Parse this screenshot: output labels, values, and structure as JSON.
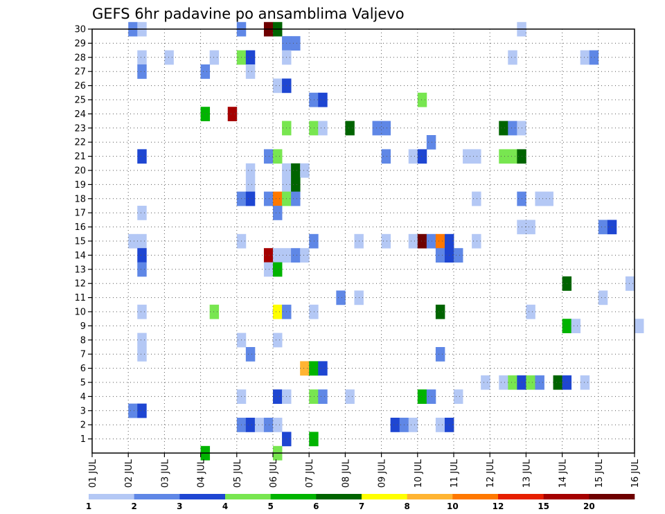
{
  "chart_data": {
    "type": "heatmap",
    "title": "GEFS 6hr padavine po ansamblima Valjevo",
    "xlabel": "",
    "ylabel": "",
    "x_tick_labels": [
      "01 JUL",
      "02 JUL",
      "03 JUL",
      "04 JUL",
      "05 JUL",
      "06 JUL",
      "07 JUL",
      "08 JUL",
      "09 JUL",
      "10 JUL",
      "11 JUL",
      "12 JUL",
      "13 JUL",
      "14 JUL",
      "15 JUL",
      "16 JUL"
    ],
    "y_tick_labels": [
      "1",
      "2",
      "3",
      "4",
      "5",
      "6",
      "7",
      "8",
      "9",
      "10",
      "11",
      "12",
      "13",
      "14",
      "15",
      "16",
      "17",
      "18",
      "19",
      "20",
      "21",
      "22",
      "23",
      "24",
      "25",
      "26",
      "27",
      "28",
      "29",
      "30"
    ],
    "xlim": [
      "01 JUL 00z",
      "16 JUL 00z"
    ],
    "ylim": [
      0,
      30
    ],
    "time_step_hours": 6,
    "grid": true,
    "grid_style": "dotted",
    "colorbar": {
      "placement": "bottom",
      "tick_labels": [
        "1",
        "2",
        "3",
        "4",
        "5",
        "6",
        "7",
        "8",
        "10",
        "12",
        "15",
        "20"
      ],
      "colors": [
        "#b4c8f5",
        "#5f87e6",
        "#1e46d2",
        "#78e650",
        "#00b400",
        "#006400",
        "#ffff00",
        "#ffb432",
        "#ff7800",
        "#e61e00",
        "#a50000",
        "#6e0000"
      ]
    },
    "cells": [
      {
        "m": 30,
        "d": 2.0,
        "l": 2
      },
      {
        "m": 30,
        "d": 2.25,
        "l": 1
      },
      {
        "m": 30,
        "d": 5.0,
        "l": 2
      },
      {
        "m": 30,
        "d": 5.75,
        "l": 12
      },
      {
        "m": 30,
        "d": 6.0,
        "l": 6
      },
      {
        "m": 30,
        "d": 12.75,
        "l": 1
      },
      {
        "m": 29,
        "d": 6.25,
        "l": 2
      },
      {
        "m": 29,
        "d": 6.5,
        "l": 2
      },
      {
        "m": 28,
        "d": 2.25,
        "l": 1
      },
      {
        "m": 28,
        "d": 3.0,
        "l": 1
      },
      {
        "m": 28,
        "d": 4.25,
        "l": 1
      },
      {
        "m": 28,
        "d": 5.0,
        "l": 4
      },
      {
        "m": 28,
        "d": 5.25,
        "l": 3
      },
      {
        "m": 28,
        "d": 6.25,
        "l": 1
      },
      {
        "m": 28,
        "d": 12.5,
        "l": 1
      },
      {
        "m": 28,
        "d": 14.5,
        "l": 1
      },
      {
        "m": 28,
        "d": 14.75,
        "l": 2
      },
      {
        "m": 27,
        "d": 2.25,
        "l": 2
      },
      {
        "m": 27,
        "d": 4.0,
        "l": 2
      },
      {
        "m": 27,
        "d": 5.25,
        "l": 1
      },
      {
        "m": 26,
        "d": 6.0,
        "l": 1
      },
      {
        "m": 26,
        "d": 6.25,
        "l": 3
      },
      {
        "m": 25,
        "d": 7.0,
        "l": 2
      },
      {
        "m": 25,
        "d": 7.25,
        "l": 3
      },
      {
        "m": 25,
        "d": 10.0,
        "l": 4
      },
      {
        "m": 24,
        "d": 4.0,
        "l": 5
      },
      {
        "m": 24,
        "d": 4.75,
        "l": 11
      },
      {
        "m": 23,
        "d": 6.25,
        "l": 4
      },
      {
        "m": 23,
        "d": 7.0,
        "l": 4
      },
      {
        "m": 23,
        "d": 7.25,
        "l": 1
      },
      {
        "m": 23,
        "d": 8.0,
        "l": 6
      },
      {
        "m": 23,
        "d": 8.75,
        "l": 2
      },
      {
        "m": 23,
        "d": 9.0,
        "l": 2
      },
      {
        "m": 23,
        "d": 12.25,
        "l": 6
      },
      {
        "m": 23,
        "d": 12.5,
        "l": 2
      },
      {
        "m": 23,
        "d": 12.75,
        "l": 1
      },
      {
        "m": 22,
        "d": 10.25,
        "l": 2
      },
      {
        "m": 21,
        "d": 2.25,
        "l": 3
      },
      {
        "m": 21,
        "d": 5.75,
        "l": 2
      },
      {
        "m": 21,
        "d": 6.0,
        "l": 4
      },
      {
        "m": 21,
        "d": 9.0,
        "l": 2
      },
      {
        "m": 21,
        "d": 9.75,
        "l": 1
      },
      {
        "m": 21,
        "d": 10.0,
        "l": 3
      },
      {
        "m": 21,
        "d": 11.25,
        "l": 1
      },
      {
        "m": 21,
        "d": 11.5,
        "l": 1
      },
      {
        "m": 21,
        "d": 12.25,
        "l": 4
      },
      {
        "m": 21,
        "d": 12.5,
        "l": 4
      },
      {
        "m": 21,
        "d": 12.75,
        "l": 6
      },
      {
        "m": 20,
        "d": 5.25,
        "l": 1
      },
      {
        "m": 20,
        "d": 6.25,
        "l": 1
      },
      {
        "m": 20,
        "d": 6.5,
        "l": 6
      },
      {
        "m": 20,
        "d": 6.75,
        "l": 1
      },
      {
        "m": 19,
        "d": 5.25,
        "l": 1
      },
      {
        "m": 19,
        "d": 6.25,
        "l": 1
      },
      {
        "m": 19,
        "d": 6.5,
        "l": 6
      },
      {
        "m": 18,
        "d": 5.0,
        "l": 2
      },
      {
        "m": 18,
        "d": 5.25,
        "l": 3
      },
      {
        "m": 18,
        "d": 5.75,
        "l": 2
      },
      {
        "m": 18,
        "d": 6.0,
        "l": 9
      },
      {
        "m": 18,
        "d": 6.25,
        "l": 4
      },
      {
        "m": 18,
        "d": 6.5,
        "l": 2
      },
      {
        "m": 18,
        "d": 11.5,
        "l": 1
      },
      {
        "m": 18,
        "d": 12.75,
        "l": 2
      },
      {
        "m": 18,
        "d": 13.25,
        "l": 1
      },
      {
        "m": 18,
        "d": 13.5,
        "l": 1
      },
      {
        "m": 17,
        "d": 2.25,
        "l": 1
      },
      {
        "m": 17,
        "d": 6.0,
        "l": 2
      },
      {
        "m": 16,
        "d": 12.75,
        "l": 1
      },
      {
        "m": 16,
        "d": 13.0,
        "l": 1
      },
      {
        "m": 16,
        "d": 15.0,
        "l": 2
      },
      {
        "m": 16,
        "d": 15.25,
        "l": 3
      },
      {
        "m": 15,
        "d": 2.0,
        "l": 1
      },
      {
        "m": 15,
        "d": 2.25,
        "l": 1
      },
      {
        "m": 15,
        "d": 5.0,
        "l": 1
      },
      {
        "m": 15,
        "d": 7.0,
        "l": 2
      },
      {
        "m": 15,
        "d": 8.25,
        "l": 1
      },
      {
        "m": 15,
        "d": 9.0,
        "l": 1
      },
      {
        "m": 15,
        "d": 9.75,
        "l": 1
      },
      {
        "m": 15,
        "d": 10.0,
        "l": 12
      },
      {
        "m": 15,
        "d": 10.25,
        "l": 2
      },
      {
        "m": 15,
        "d": 10.5,
        "l": 9
      },
      {
        "m": 15,
        "d": 10.75,
        "l": 3
      },
      {
        "m": 15,
        "d": 11.5,
        "l": 1
      },
      {
        "m": 14,
        "d": 2.25,
        "l": 3
      },
      {
        "m": 14,
        "d": 5.75,
        "l": 11
      },
      {
        "m": 14,
        "d": 6.0,
        "l": 1
      },
      {
        "m": 14,
        "d": 6.25,
        "l": 1
      },
      {
        "m": 14,
        "d": 6.5,
        "l": 2
      },
      {
        "m": 14,
        "d": 6.75,
        "l": 1
      },
      {
        "m": 14,
        "d": 10.5,
        "l": 2
      },
      {
        "m": 14,
        "d": 10.75,
        "l": 3
      },
      {
        "m": 14,
        "d": 11.0,
        "l": 2
      },
      {
        "m": 13,
        "d": 2.25,
        "l": 2
      },
      {
        "m": 13,
        "d": 5.75,
        "l": 1
      },
      {
        "m": 13,
        "d": 6.0,
        "l": 5
      },
      {
        "m": 12,
        "d": 14.0,
        "l": 6
      },
      {
        "m": 12,
        "d": 15.75,
        "l": 1
      },
      {
        "m": 11,
        "d": 7.75,
        "l": 2
      },
      {
        "m": 11,
        "d": 8.25,
        "l": 1
      },
      {
        "m": 11,
        "d": 15.0,
        "l": 1
      },
      {
        "m": 10,
        "d": 2.25,
        "l": 1
      },
      {
        "m": 10,
        "d": 4.25,
        "l": 4
      },
      {
        "m": 10,
        "d": 6.0,
        "l": 7
      },
      {
        "m": 10,
        "d": 6.25,
        "l": 2
      },
      {
        "m": 10,
        "d": 7.0,
        "l": 1
      },
      {
        "m": 10,
        "d": 10.5,
        "l": 6
      },
      {
        "m": 10,
        "d": 13.0,
        "l": 1
      },
      {
        "m": 9,
        "d": 14.0,
        "l": 5
      },
      {
        "m": 9,
        "d": 14.25,
        "l": 1
      },
      {
        "m": 9,
        "d": 16.0,
        "l": 1
      },
      {
        "m": 8,
        "d": 2.25,
        "l": 1
      },
      {
        "m": 8,
        "d": 5.0,
        "l": 1
      },
      {
        "m": 8,
        "d": 6.0,
        "l": 1
      },
      {
        "m": 7,
        "d": 2.25,
        "l": 1
      },
      {
        "m": 7,
        "d": 5.25,
        "l": 2
      },
      {
        "m": 7,
        "d": 10.5,
        "l": 2
      },
      {
        "m": 6,
        "d": 6.75,
        "l": 8
      },
      {
        "m": 6,
        "d": 7.0,
        "l": 5
      },
      {
        "m": 6,
        "d": 7.25,
        "l": 3
      },
      {
        "m": 5,
        "d": 11.75,
        "l": 1
      },
      {
        "m": 5,
        "d": 12.25,
        "l": 1
      },
      {
        "m": 5,
        "d": 12.5,
        "l": 4
      },
      {
        "m": 5,
        "d": 12.75,
        "l": 3
      },
      {
        "m": 5,
        "d": 13.0,
        "l": 4
      },
      {
        "m": 5,
        "d": 13.25,
        "l": 2
      },
      {
        "m": 5,
        "d": 13.75,
        "l": 6
      },
      {
        "m": 5,
        "d": 14.0,
        "l": 3
      },
      {
        "m": 5,
        "d": 14.5,
        "l": 1
      },
      {
        "m": 4,
        "d": 5.0,
        "l": 1
      },
      {
        "m": 4,
        "d": 6.0,
        "l": 3
      },
      {
        "m": 4,
        "d": 6.25,
        "l": 1
      },
      {
        "m": 4,
        "d": 7.0,
        "l": 4
      },
      {
        "m": 4,
        "d": 7.25,
        "l": 2
      },
      {
        "m": 4,
        "d": 8.0,
        "l": 1
      },
      {
        "m": 4,
        "d": 10.0,
        "l": 5
      },
      {
        "m": 4,
        "d": 10.25,
        "l": 2
      },
      {
        "m": 4,
        "d": 11.0,
        "l": 1
      },
      {
        "m": 3,
        "d": 2.0,
        "l": 2
      },
      {
        "m": 3,
        "d": 2.25,
        "l": 3
      },
      {
        "m": 2,
        "d": 5.0,
        "l": 2
      },
      {
        "m": 2,
        "d": 5.25,
        "l": 3
      },
      {
        "m": 2,
        "d": 5.5,
        "l": 1
      },
      {
        "m": 2,
        "d": 5.75,
        "l": 2
      },
      {
        "m": 2,
        "d": 6.0,
        "l": 1
      },
      {
        "m": 2,
        "d": 9.25,
        "l": 3
      },
      {
        "m": 2,
        "d": 9.5,
        "l": 2
      },
      {
        "m": 2,
        "d": 9.75,
        "l": 1
      },
      {
        "m": 2,
        "d": 10.5,
        "l": 1
      },
      {
        "m": 2,
        "d": 10.75,
        "l": 3
      },
      {
        "m": 1,
        "d": 6.25,
        "l": 3
      },
      {
        "m": 1,
        "d": 7.0,
        "l": 5
      },
      {
        "m": 0,
        "d": 4.0,
        "l": 5
      },
      {
        "m": 0,
        "d": 6.0,
        "l": 4
      }
    ]
  }
}
